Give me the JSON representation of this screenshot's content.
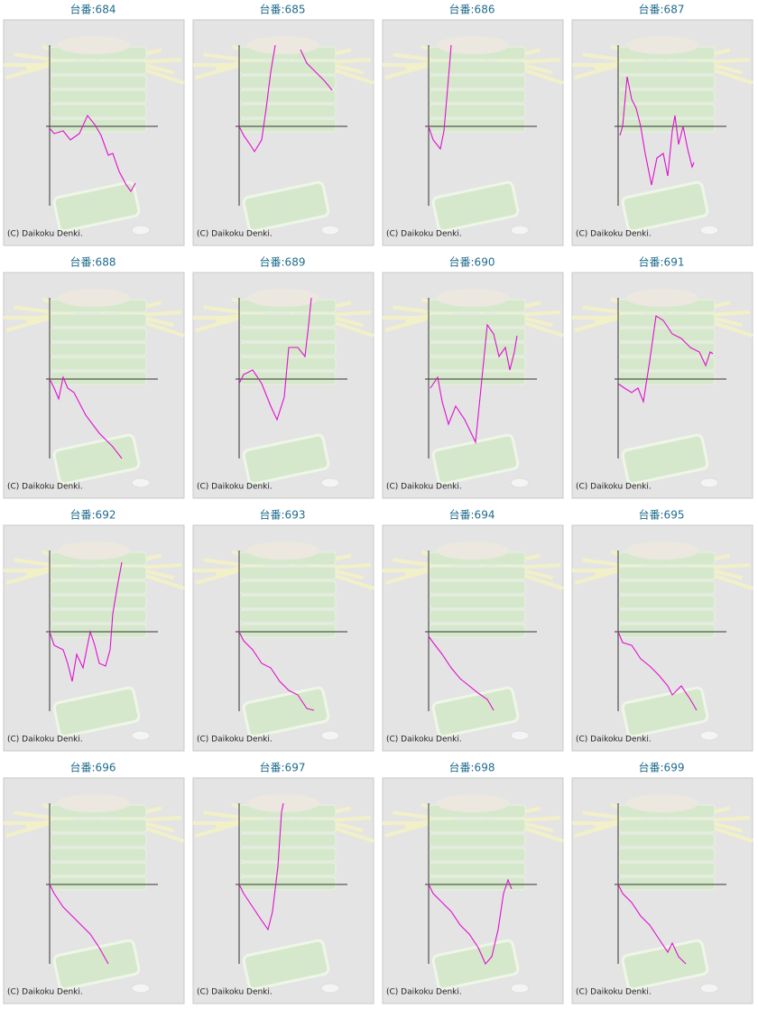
{
  "chart_data": [
    {
      "type": "line",
      "title": "台番:684",
      "source": "(C) Daikoku Denki.",
      "color": "#e010d0",
      "xlim": [
        0,
        120
      ],
      "ylim": [
        -88,
        90
      ],
      "x": [
        0,
        5,
        15,
        23,
        33,
        42,
        50,
        57,
        65,
        70,
        77,
        85,
        90,
        95
      ],
      "values": [
        -2,
        -8,
        -5,
        -15,
        -8,
        12,
        2,
        -10,
        -32,
        -30,
        -50,
        -65,
        -72,
        -63
      ]
    },
    {
      "type": "line",
      "title": "台番:685",
      "source": "(C) Daikoku Denki.",
      "color": "#e010d0",
      "xlim": [
        0,
        120
      ],
      "ylim": [
        -88,
        90
      ],
      "x": [
        0,
        5,
        12,
        17,
        25,
        30,
        35,
        40,
        55,
        68,
        75,
        85,
        95,
        103
      ],
      "values": [
        0,
        -10,
        -20,
        -28,
        -15,
        20,
        60,
        90,
        null,
        85,
        70,
        60,
        50,
        40
      ]
    },
    {
      "type": "line",
      "title": "台番:686",
      "source": "(C) Daikoku Denki.",
      "color": "#e010d0",
      "xlim": [
        0,
        120
      ],
      "ylim": [
        -88,
        90
      ],
      "x": [
        0,
        5,
        13,
        17,
        20,
        25
      ],
      "values": [
        0,
        -15,
        -25,
        -5,
        30,
        90
      ]
    },
    {
      "type": "line",
      "title": "台番:687",
      "source": "(C) Daikoku Denki.",
      "color": "#e010d0",
      "xlim": [
        0,
        120
      ],
      "ylim": [
        -88,
        90
      ],
      "x": [
        2,
        5,
        10,
        15,
        20,
        25,
        30,
        37,
        43,
        50,
        55,
        60,
        63,
        67,
        72,
        77,
        82,
        84
      ],
      "values": [
        -10,
        0,
        55,
        30,
        20,
        0,
        -30,
        -65,
        -35,
        -30,
        -55,
        -5,
        12,
        -20,
        0,
        -25,
        -45,
        -40
      ]
    },
    {
      "type": "line",
      "title": "台番:688",
      "source": "(C) Daikoku Denki.",
      "color": "#e010d0",
      "xlim": [
        0,
        120
      ],
      "ylim": [
        -88,
        90
      ],
      "x": [
        0,
        5,
        10,
        15,
        20,
        27,
        40,
        55,
        70,
        80
      ],
      "values": [
        0,
        -10,
        -22,
        2,
        -10,
        -15,
        -40,
        -60,
        -75,
        -88
      ]
    },
    {
      "type": "line",
      "title": "台番:689",
      "source": "(C) Daikoku Denki.",
      "color": "#e010d0",
      "xlim": [
        0,
        120
      ],
      "ylim": [
        -88,
        90
      ],
      "x": [
        0,
        5,
        15,
        25,
        35,
        42,
        50,
        55,
        65,
        73,
        77,
        80
      ],
      "values": [
        -5,
        5,
        10,
        -5,
        -30,
        -45,
        -20,
        35,
        35,
        25,
        60,
        90
      ]
    },
    {
      "type": "line",
      "title": "台番:690",
      "source": "(C) Daikoku Denki.",
      "color": "#e010d0",
      "xlim": [
        0,
        120
      ],
      "ylim": [
        -88,
        90
      ],
      "x": [
        2,
        10,
        15,
        22,
        30,
        40,
        52,
        58,
        65,
        72,
        78,
        85,
        90,
        95,
        98
      ],
      "values": [
        -10,
        2,
        -25,
        -50,
        -30,
        -45,
        -70,
        -10,
        60,
        50,
        25,
        35,
        10,
        30,
        48
      ]
    },
    {
      "type": "line",
      "title": "台番:691",
      "source": "(C) Daikoku Denki.",
      "color": "#e010d0",
      "xlim": [
        0,
        120
      ],
      "ylim": [
        -88,
        90
      ],
      "x": [
        0,
        7,
        15,
        22,
        28,
        35,
        42,
        50,
        60,
        70,
        80,
        90,
        97,
        102,
        105
      ],
      "values": [
        -5,
        -10,
        -15,
        -10,
        -25,
        20,
        70,
        65,
        50,
        45,
        35,
        30,
        15,
        30,
        28
      ]
    },
    {
      "type": "line",
      "title": "台番:692",
      "source": "(C) Daikoku Denki.",
      "color": "#e010d0",
      "xlim": [
        0,
        120
      ],
      "ylim": [
        -88,
        90
      ],
      "x": [
        0,
        5,
        15,
        20,
        25,
        30,
        37,
        45,
        50,
        55,
        62,
        67,
        70,
        75,
        80
      ],
      "values": [
        0,
        -15,
        -20,
        -35,
        -55,
        -25,
        -40,
        0,
        -15,
        -35,
        -38,
        -20,
        20,
        50,
        77
      ]
    },
    {
      "type": "line",
      "title": "台番:693",
      "source": "(C) Daikoku Denki.",
      "color": "#e010d0",
      "xlim": [
        0,
        120
      ],
      "ylim": [
        -88,
        90
      ],
      "x": [
        0,
        5,
        15,
        25,
        35,
        45,
        55,
        65,
        75,
        83
      ],
      "values": [
        0,
        -10,
        -20,
        -35,
        -40,
        -55,
        -65,
        -70,
        -85,
        -87
      ]
    },
    {
      "type": "line",
      "title": "台番:694",
      "source": "(C) Daikoku Denki.",
      "color": "#e010d0",
      "xlim": [
        0,
        120
      ],
      "ylim": [
        -88,
        90
      ],
      "x": [
        0,
        5,
        15,
        25,
        35,
        45,
        55,
        65,
        72
      ],
      "values": [
        -5,
        -12,
        -25,
        -40,
        -52,
        -60,
        -68,
        -75,
        -87
      ]
    },
    {
      "type": "line",
      "title": "台番:695",
      "source": "(C) Daikoku Denki.",
      "color": "#e010d0",
      "xlim": [
        0,
        120
      ],
      "ylim": [
        -88,
        90
      ],
      "x": [
        0,
        5,
        15,
        25,
        35,
        45,
        55,
        60,
        70,
        80,
        87
      ],
      "values": [
        0,
        -12,
        -15,
        -30,
        -38,
        -48,
        -60,
        -70,
        -60,
        -75,
        -87
      ]
    },
    {
      "type": "line",
      "title": "台番:696",
      "source": "(C) Daikoku Denki.",
      "color": "#e010d0",
      "xlim": [
        0,
        120
      ],
      "ylim": [
        -88,
        90
      ],
      "x": [
        0,
        5,
        15,
        25,
        35,
        45,
        55,
        65
      ],
      "values": [
        0,
        -10,
        -25,
        -35,
        -45,
        -55,
        -70,
        -88
      ]
    },
    {
      "type": "line",
      "title": "台番:697",
      "source": "(C) Daikoku Denki.",
      "color": "#e010d0",
      "xlim": [
        0,
        120
      ],
      "ylim": [
        -88,
        90
      ],
      "x": [
        0,
        5,
        15,
        25,
        32,
        37,
        43,
        47,
        49
      ],
      "values": [
        0,
        -10,
        -25,
        -40,
        -50,
        -30,
        20,
        80,
        90
      ]
    },
    {
      "type": "line",
      "title": "台番:698",
      "source": "(C) Daikoku Denki.",
      "color": "#e010d0",
      "xlim": [
        0,
        120
      ],
      "ylim": [
        -88,
        90
      ],
      "x": [
        0,
        5,
        15,
        25,
        35,
        45,
        55,
        63,
        70,
        77,
        83,
        88,
        92
      ],
      "values": [
        0,
        -10,
        -20,
        -30,
        -45,
        -55,
        -70,
        -88,
        -80,
        -50,
        -10,
        5,
        -5
      ]
    },
    {
      "type": "line",
      "title": "台番:699",
      "source": "(C) Daikoku Denki.",
      "color": "#e010d0",
      "xlim": [
        0,
        120
      ],
      "ylim": [
        -88,
        90
      ],
      "x": [
        0,
        5,
        15,
        25,
        35,
        45,
        55,
        60,
        67,
        75
      ],
      "values": [
        0,
        -10,
        -20,
        -35,
        -45,
        -60,
        -75,
        -65,
        -80,
        -88
      ]
    }
  ]
}
